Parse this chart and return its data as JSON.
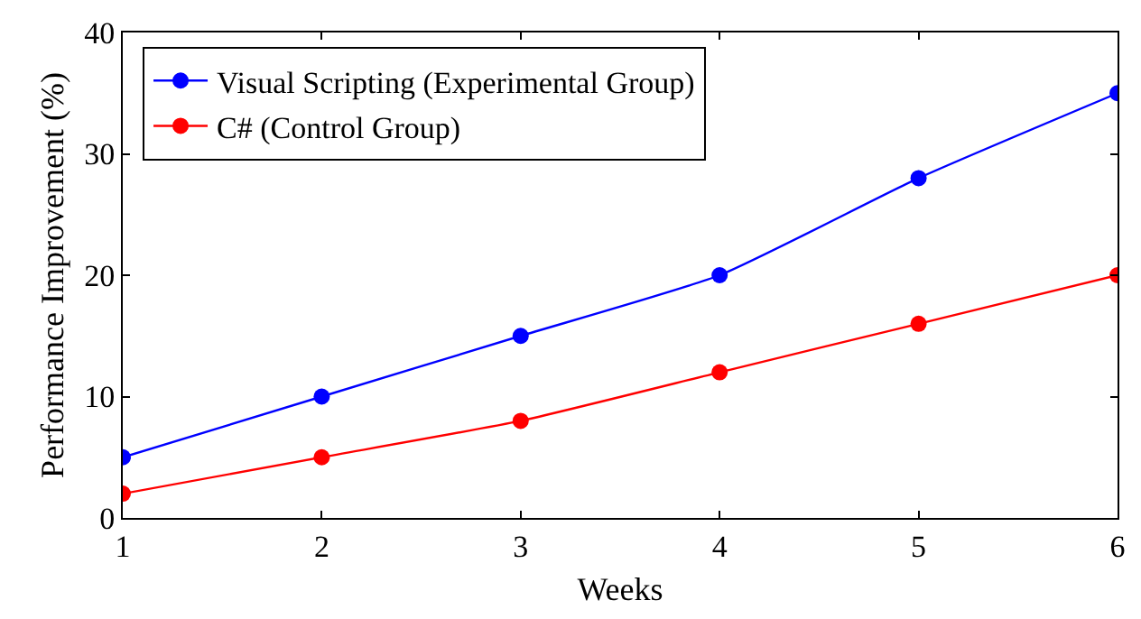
{
  "chart_data": {
    "type": "line",
    "xlabel": "Weeks",
    "ylabel": "Performance Improvement (%)",
    "x": [
      1,
      2,
      3,
      4,
      5,
      6
    ],
    "series": [
      {
        "name": "Visual Scripting (Experimental Group)",
        "color": "#0000ff",
        "values": [
          5,
          10,
          15,
          20,
          28,
          35
        ]
      },
      {
        "name": "C# (Control Group)",
        "color": "#ff0000",
        "values": [
          2,
          5,
          8,
          12,
          16,
          20
        ]
      }
    ],
    "xlim": [
      1,
      6
    ],
    "xticks": [
      1,
      2,
      3,
      4,
      5,
      6
    ],
    "ylim": [
      0,
      40
    ],
    "yticks": [
      0,
      10,
      20,
      30,
      40
    ],
    "grid": false,
    "legend": "top left",
    "marker": "circle",
    "line_style": "solid"
  }
}
